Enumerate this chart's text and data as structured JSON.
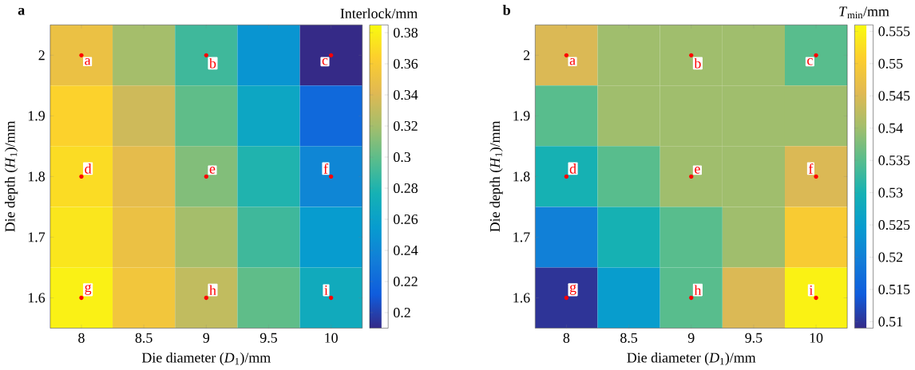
{
  "chart_data": [
    {
      "type": "heatmap",
      "title": "a",
      "xlabel": "Die diameter (*D*$_{1}$)/mm",
      "ylabel": "Die depth (*H*$_{1}$)/mm",
      "clabel": "Interlock/mm",
      "categories": [
        "8",
        "8.5",
        "9",
        "9.5",
        "10"
      ],
      "y_categories": [
        "2",
        "1.9",
        "1.8",
        "1.7",
        "1.6"
      ],
      "cells": [
        [
          0.35,
          0.32,
          0.29,
          0.25,
          0.19
        ],
        [
          0.365,
          0.335,
          0.3,
          0.265,
          0.22
        ],
        [
          0.37,
          0.345,
          0.31,
          0.28,
          0.24
        ],
        [
          0.375,
          0.35,
          0.32,
          0.29,
          0.255
        ],
        [
          0.38,
          0.355,
          0.33,
          0.3,
          0.27
        ]
      ],
      "clim": [
        0.19,
        0.385
      ],
      "cticks": [
        0.2,
        0.22,
        0.24,
        0.26,
        0.28,
        0.3,
        0.32,
        0.34,
        0.36,
        0.38
      ],
      "annotations": [
        {
          "text": "a",
          "x": "8",
          "y": "2"
        },
        {
          "text": "b",
          "x": "9",
          "y": "2"
        },
        {
          "text": "c",
          "x": "10",
          "y": "2"
        },
        {
          "text": "d",
          "x": "8",
          "y": "1.8"
        },
        {
          "text": "e",
          "x": "9",
          "y": "1.8"
        },
        {
          "text": "f",
          "x": "10",
          "y": "1.8"
        },
        {
          "text": "g",
          "x": "8",
          "y": "1.6"
        },
        {
          "text": "h",
          "x": "9",
          "y": "1.6"
        },
        {
          "text": "i",
          "x": "10",
          "y": "1.6"
        }
      ]
    },
    {
      "type": "heatmap",
      "title": "b",
      "xlabel": "Die diameter (*D*$_{1}$)/mm",
      "ylabel": "Die depth (*H*$_{1}$)/mm",
      "clabel": "*T*$_{min}$/mm",
      "categories": [
        "8",
        "8.5",
        "9",
        "9.5",
        "10"
      ],
      "y_categories": [
        "2",
        "1.9",
        "1.8",
        "1.7",
        "1.6"
      ],
      "cells": [
        [
          0.545,
          0.54,
          0.54,
          0.54,
          0.535
        ],
        [
          0.535,
          0.54,
          0.54,
          0.54,
          0.54
        ],
        [
          0.53,
          0.535,
          0.54,
          0.54,
          0.545
        ],
        [
          0.52,
          0.53,
          0.535,
          0.54,
          0.55
        ],
        [
          0.51,
          0.525,
          0.535,
          0.545,
          0.555
        ]
      ],
      "clim": [
        0.509,
        0.556
      ],
      "cticks": [
        0.51,
        0.515,
        0.52,
        0.525,
        0.53,
        0.535,
        0.54,
        0.545,
        0.55,
        0.555
      ],
      "annotations": [
        {
          "text": "a",
          "x": "8",
          "y": "2"
        },
        {
          "text": "b",
          "x": "9",
          "y": "2"
        },
        {
          "text": "c",
          "x": "10",
          "y": "2"
        },
        {
          "text": "d",
          "x": "8",
          "y": "1.8"
        },
        {
          "text": "e",
          "x": "9",
          "y": "1.8"
        },
        {
          "text": "f",
          "x": "10",
          "y": "1.8"
        },
        {
          "text": "g",
          "x": "8",
          "y": "1.6"
        },
        {
          "text": "h",
          "x": "9",
          "y": "1.6"
        },
        {
          "text": "i",
          "x": "10",
          "y": "1.6"
        }
      ]
    }
  ]
}
